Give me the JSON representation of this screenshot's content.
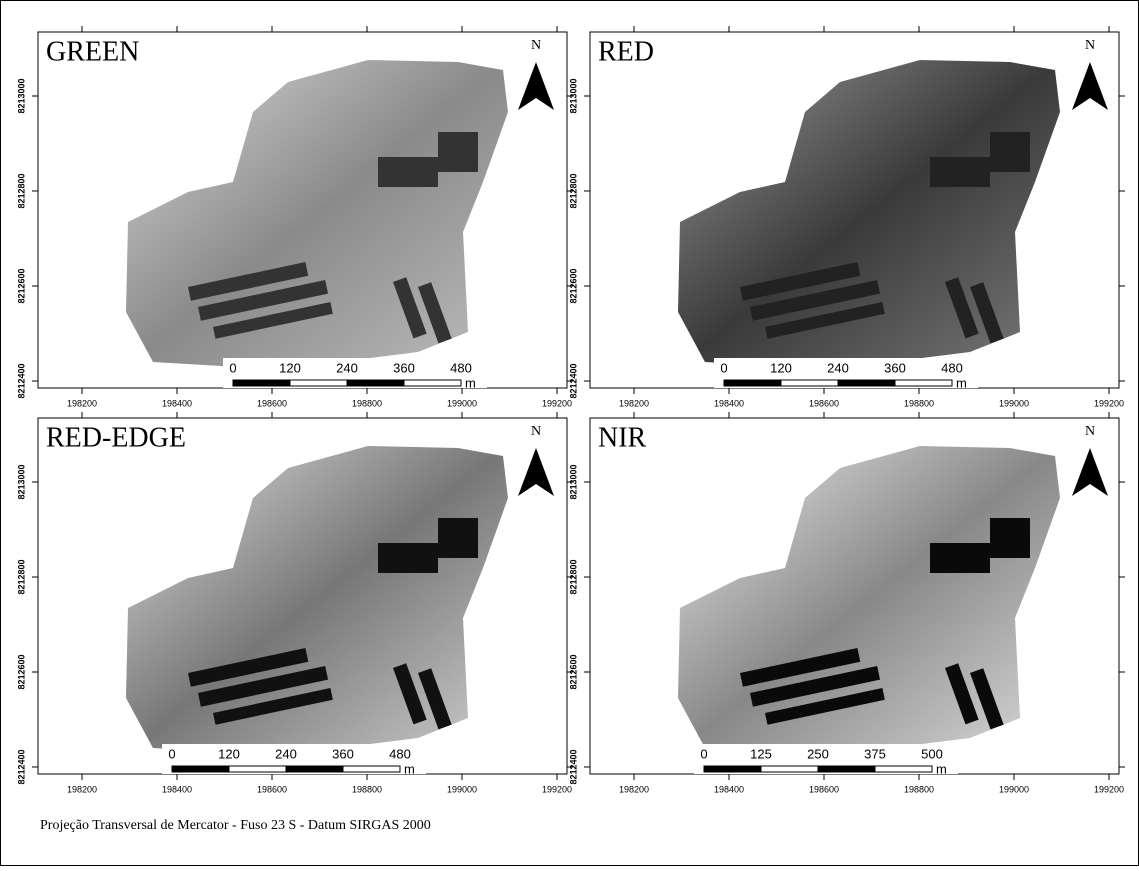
{
  "panels": [
    {
      "title": "GREEN",
      "north": "N",
      "scale_labels": [
        0,
        120,
        240,
        360,
        480
      ],
      "scale_unit": "m",
      "x_ticks": [
        198200,
        198400,
        198600,
        198800,
        199000,
        199200
      ],
      "y_ticks": [
        8213000,
        8212800,
        8212600,
        8212400
      ]
    },
    {
      "title": "RED",
      "north": "N",
      "scale_labels": [
        0,
        120,
        240,
        360,
        480
      ],
      "scale_unit": "m",
      "x_ticks": [
        198200,
        198400,
        198600,
        198800,
        199000,
        199200
      ],
      "y_ticks": [
        8213000,
        8212800,
        8212600,
        8212400
      ]
    },
    {
      "title": "RED-EDGE",
      "north": "N",
      "scale_labels": [
        0,
        120,
        240,
        360,
        480
      ],
      "scale_unit": "m",
      "x_ticks": [
        198200,
        198400,
        198600,
        198800,
        199000,
        199200
      ],
      "y_ticks": [
        8213000,
        8212800,
        8212600,
        8212400
      ]
    },
    {
      "title": "NIR",
      "north": "N",
      "scale_labels": [
        0,
        125,
        250,
        375,
        500
      ],
      "scale_unit": "m",
      "x_ticks": [
        198200,
        198400,
        198600,
        198800,
        199000,
        199200
      ],
      "y_ticks": [
        8213000,
        8212800,
        8212600,
        8212400
      ]
    }
  ],
  "footer": "Projeção Transversal de Mercator -  Fuso 23 S - Datum SIRGAS 2000"
}
